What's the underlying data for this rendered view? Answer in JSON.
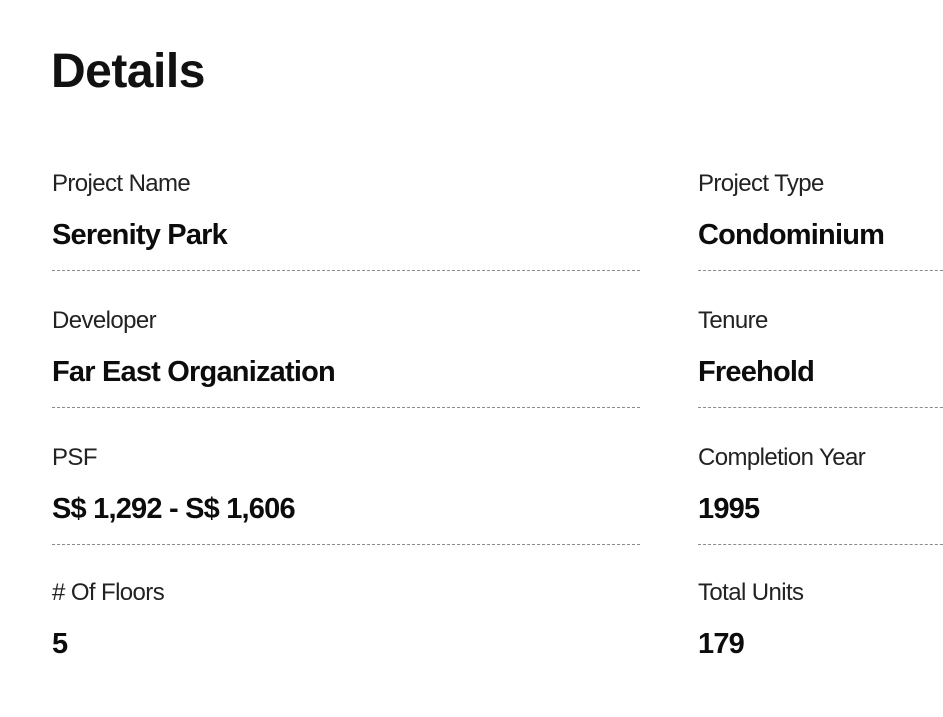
{
  "title": "Details",
  "fields": [
    {
      "label": "Project Name",
      "value": "Serenity Park"
    },
    {
      "label": "Project Type",
      "value": "Condominium"
    },
    {
      "label": "Developer",
      "value": "Far East Organization"
    },
    {
      "label": "Tenure",
      "value": "Freehold"
    },
    {
      "label": "PSF",
      "value": "S$ 1,292 - S$ 1,606"
    },
    {
      "label": "Completion Year",
      "value": "1995"
    },
    {
      "label": "# Of Floors",
      "value": "5"
    },
    {
      "label": "Total Units",
      "value": "179"
    }
  ]
}
